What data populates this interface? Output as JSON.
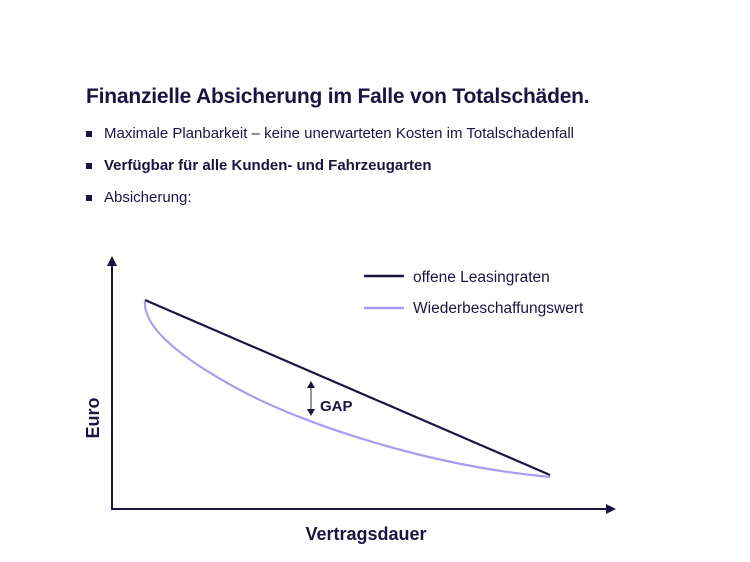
{
  "heading": "Finanzielle Absicherung im Falle von Totalschäden.",
  "bullets": [
    {
      "text": "Maximale Planbarkeit – keine unerwarteten Kosten im Totalschadenfall",
      "bold": false
    },
    {
      "text": "Verfügbar für alle Kunden- und Fahrzeugarten",
      "bold": true
    },
    {
      "text": "Absicherung:",
      "bold": false
    }
  ],
  "diagram": {
    "y_axis_label": "Euro",
    "x_axis_label": "Vertragsdauer",
    "gap_label": "GAP",
    "legend": [
      {
        "label": "offene Leasingraten",
        "color": "#1a1540"
      },
      {
        "label": "Wiederbeschaffungswert",
        "color": "#a99cf0"
      }
    ]
  }
}
